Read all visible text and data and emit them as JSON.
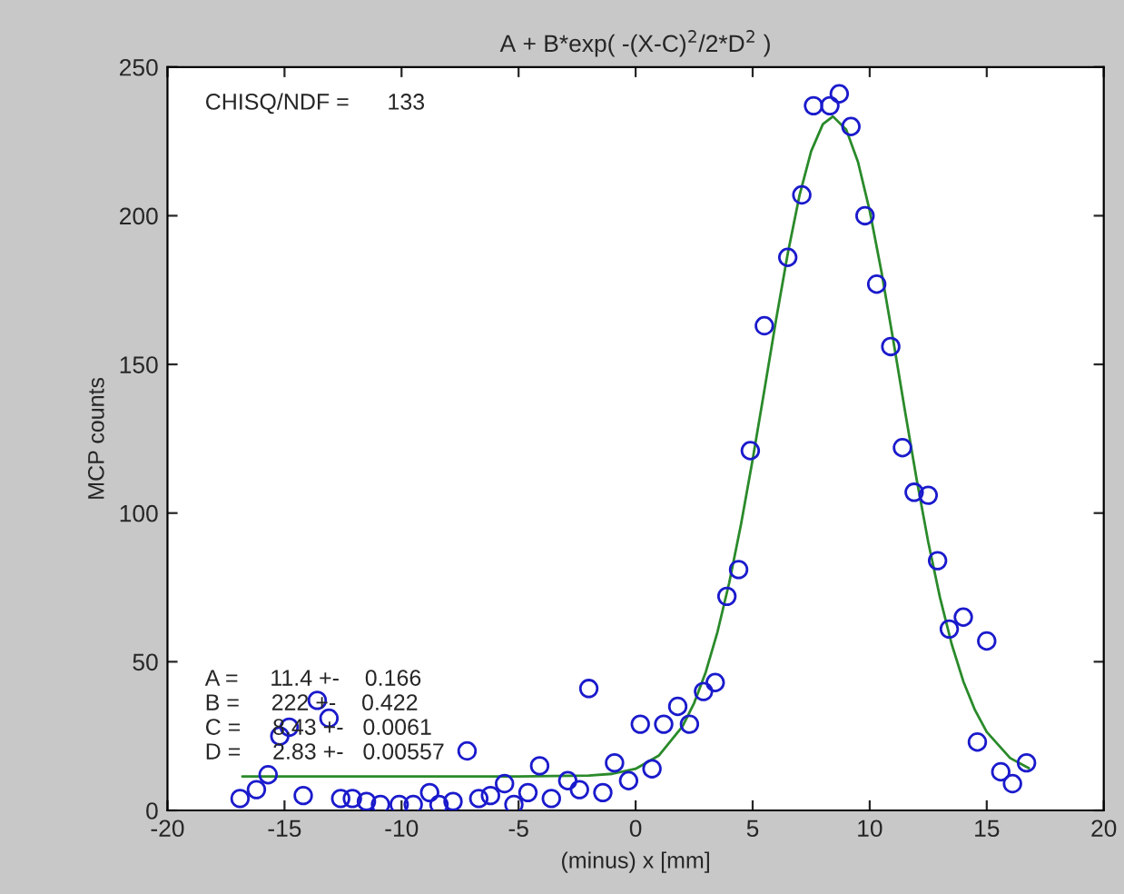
{
  "chart_data": {
    "type": "scatter",
    "title": "A + B*exp( -(X-C)$^{2}$/2*D$^{2}$ )",
    "xlabel": "(minus) x [mm]",
    "ylabel": "MCP counts",
    "xlim": [
      -20,
      20
    ],
    "ylim": [
      0,
      250
    ],
    "xticks": [
      -20,
      -15,
      -10,
      -5,
      0,
      5,
      10,
      15,
      20
    ],
    "yticks": [
      0,
      50,
      100,
      150,
      200,
      250
    ],
    "grid": false,
    "series": [
      {
        "marker": "circle",
        "color": "#1a1acc",
        "x": [
          -16.9,
          -16.2,
          -15.7,
          -15.2,
          -14.8,
          -14.2,
          -13.6,
          -13.1,
          -12.6,
          -12.1,
          -11.5,
          -10.9,
          -10.1,
          -9.5,
          -8.8,
          -8.4,
          -7.8,
          -7.2,
          -6.7,
          -6.2,
          -5.6,
          -5.2,
          -4.6,
          -4.1,
          -3.6,
          -2.9,
          -2.4,
          -2.0,
          -1.4,
          -0.9,
          -0.3,
          0.2,
          0.7,
          1.2,
          1.8,
          2.3,
          2.9,
          3.4,
          3.9,
          4.4,
          4.9,
          5.5,
          6.5,
          7.1,
          7.6,
          8.3,
          8.7,
          9.2,
          9.8,
          10.3,
          10.9,
          11.4,
          11.9,
          12.5,
          12.9,
          13.4,
          14.0,
          14.6,
          15.0,
          15.6,
          16.1,
          16.7
        ],
        "values": [
          4,
          7,
          12,
          25,
          28,
          5,
          37,
          31,
          4,
          4,
          3,
          2,
          2,
          2,
          6,
          2,
          3,
          20,
          4,
          5,
          9,
          2,
          6,
          15,
          4,
          10,
          7,
          41,
          6,
          16,
          10,
          29,
          14,
          29,
          35,
          29,
          40,
          43,
          72,
          81,
          121,
          163,
          186,
          207,
          237,
          237,
          241,
          230,
          200,
          177,
          156,
          122,
          107,
          106,
          84,
          61,
          65,
          23,
          57,
          13,
          9,
          16
        ]
      },
      {
        "type": "line",
        "color": "#2a8a2a",
        "marker": "none",
        "line_style": "solid",
        "x": [
          -16.8,
          -10,
          -5,
          -2,
          -1,
          0,
          1,
          2,
          2.5,
          3,
          3.5,
          4,
          4.5,
          5,
          5.5,
          6,
          6.5,
          7,
          7.5,
          8,
          8.43,
          9,
          9.5,
          10,
          10.5,
          11,
          11.5,
          12,
          12.5,
          13,
          13.5,
          14,
          14.5,
          15,
          16,
          16.8
        ],
        "values": [
          11.4,
          11.4,
          11.4,
          11.7,
          12.3,
          14.0,
          18.5,
          28.2,
          36.1,
          46.6,
          60.1,
          76.6,
          96.1,
          118,
          141.3,
          165,
          187.3,
          206.8,
          221.7,
          230.8,
          233.4,
          228.9,
          218.1,
          201.7,
          181.3,
          158.4,
          134.7,
          111.6,
          90.3,
          71.7,
          56,
          43.4,
          33.7,
          26.4,
          17.6,
          14.2
        ]
      }
    ],
    "annotations": [
      "CHISQ/NDF =      133",
      "A =     11.4 +-    0.166",
      "B =     222 +-    0.422",
      "C =     8.43 +-   0.0061",
      "D =     2.83 +-   0.00557"
    ]
  }
}
